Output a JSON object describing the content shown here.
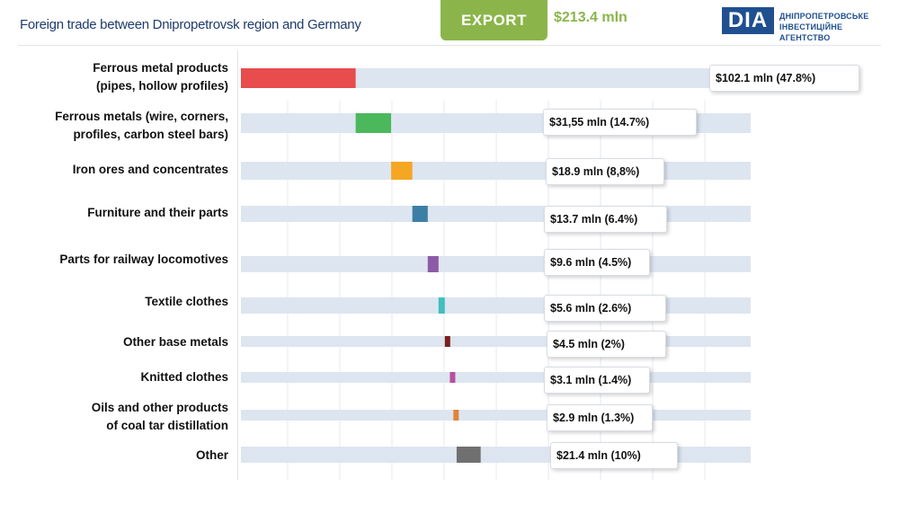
{
  "header": {
    "title": "Foreign trade between Dnipropetrovsk region and Germany",
    "export_label": "EXPORT",
    "export_total": "$213.4 mln"
  },
  "logo": {
    "mark": "DIA",
    "text": "ДНІПРОПЕТРОВСЬКЕ\nІНВЕСТИЦІЙНЕ АГЕНТСТВО"
  },
  "chart_data": {
    "type": "bar",
    "orientation": "horizontal",
    "unit": "mln USD",
    "categories": [
      "Ferrous metal products\n(pipes, hollow profiles)",
      "Ferrous metals (wire, corners,\nprofiles, carbon steel bars)",
      "Iron ores and concentrates",
      "Furniture and their parts",
      "Parts for railway locomotives",
      "Textile clothes",
      "Other base metals",
      "Knitted clothes",
      "Oils and other products\nof coal tar distillation",
      "Other"
    ],
    "values": [
      102.1,
      31.55,
      18.9,
      13.7,
      9.6,
      5.6,
      4.5,
      3.1,
      2.9,
      21.4
    ],
    "shares_percent": [
      47.8,
      14.7,
      8.8,
      6.4,
      4.5,
      2.6,
      2.0,
      1.4,
      1.3,
      10.0
    ],
    "data_labels": [
      "$102.1 mln (47.8%)",
      "$31,55 mln (14.7%)",
      "$18.9 mln (8,8%)",
      "$13.7 mln (6.4%)",
      "$9.6 mln (4.5%)",
      "$5.6 mln (2.6%)",
      "$4.5 mln (2%)",
      "$3.1 mln (1.4%)",
      "$2.9 mln (1.3%)",
      "$21.4 mln (10%)"
    ],
    "colors": [
      "#e84c4c",
      "#4cb85c",
      "#f5a623",
      "#3d7ea6",
      "#8e5aa8",
      "#3fbfbf",
      "#7a1f1f",
      "#b84fa0",
      "#e0843a",
      "#707070"
    ],
    "track_color": "#dde5f0",
    "style": "waterfall",
    "grid": true
  }
}
